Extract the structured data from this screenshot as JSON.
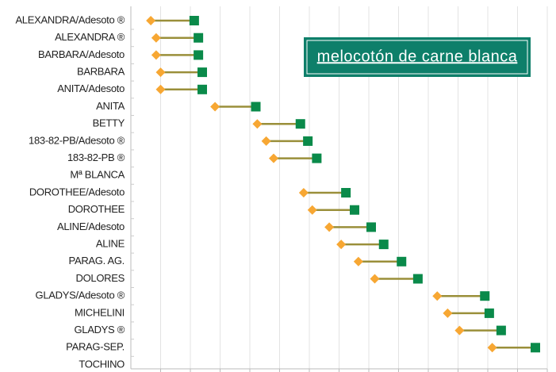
{
  "chart_data": {
    "type": "dumbbell",
    "title": "melocotón de carne blanca",
    "categories": [
      "ALEXANDRA/Adesoto ®",
      "ALEXANDRA ®",
      "BARBARA/Adesoto",
      "BARBARA",
      "ANITA/Adesoto",
      "ANITA",
      "BETTY",
      "183-82-PB/Adesoto ®",
      "183-82-PB ®",
      "Mª BLANCA",
      "DOROTHEE/Adesoto",
      "DOROTHEE",
      "ALINE/Adesoto",
      "ALINE",
      "PARAG. AG.",
      "DOLORES",
      "GLADYS/Adesoto ®",
      "MICHELINI",
      "GLADYS ®",
      "PARAG-SEP.",
      "TOCHINO"
    ],
    "series": [
      {
        "color": "#f7a733",
        "values": [
          0.67,
          0.85,
          0.85,
          1.0,
          1.0,
          2.83,
          4.25,
          4.55,
          4.8,
          null,
          5.81,
          6.1,
          6.67,
          7.07,
          7.65,
          8.2,
          10.3,
          10.65,
          11.05,
          12.15,
          null
        ]
      },
      {
        "color": "#0a8a4a",
        "values": [
          2.13,
          2.27,
          2.27,
          2.4,
          2.4,
          4.2,
          5.7,
          5.95,
          6.25,
          null,
          7.23,
          7.52,
          8.08,
          8.5,
          9.1,
          9.65,
          11.9,
          12.05,
          12.45,
          13.6,
          null
        ]
      }
    ],
    "connector_color": "#9a8f3a",
    "title_box_color": "#0e7f6a",
    "xlim": [
      0,
      14
    ],
    "xticks": [
      1,
      2,
      3,
      4,
      5,
      6,
      7,
      8,
      9,
      10,
      11,
      12,
      13,
      14
    ],
    "grid": true
  }
}
